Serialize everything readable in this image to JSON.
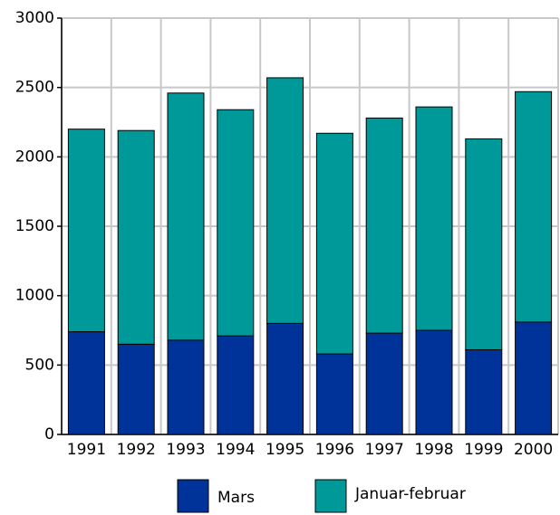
{
  "chart_data": {
    "type": "stacked_bar",
    "categories": [
      "1991",
      "1992",
      "1993",
      "1994",
      "1995",
      "1996",
      "1997",
      "1998",
      "1999",
      "2000"
    ],
    "series": [
      {
        "name": "Mars",
        "color": "#003399",
        "values": [
          740,
          650,
          680,
          710,
          800,
          580,
          730,
          750,
          610,
          810
        ]
      },
      {
        "name": "Januar-februar",
        "color": "#009999",
        "values": [
          1460,
          1540,
          1780,
          1630,
          1770,
          1590,
          1550,
          1610,
          1520,
          1660
        ]
      }
    ],
    "ylim": [
      0,
      3000
    ],
    "yticks": [
      0,
      500,
      1000,
      1500,
      2000,
      2500,
      3000
    ],
    "grid": true
  }
}
